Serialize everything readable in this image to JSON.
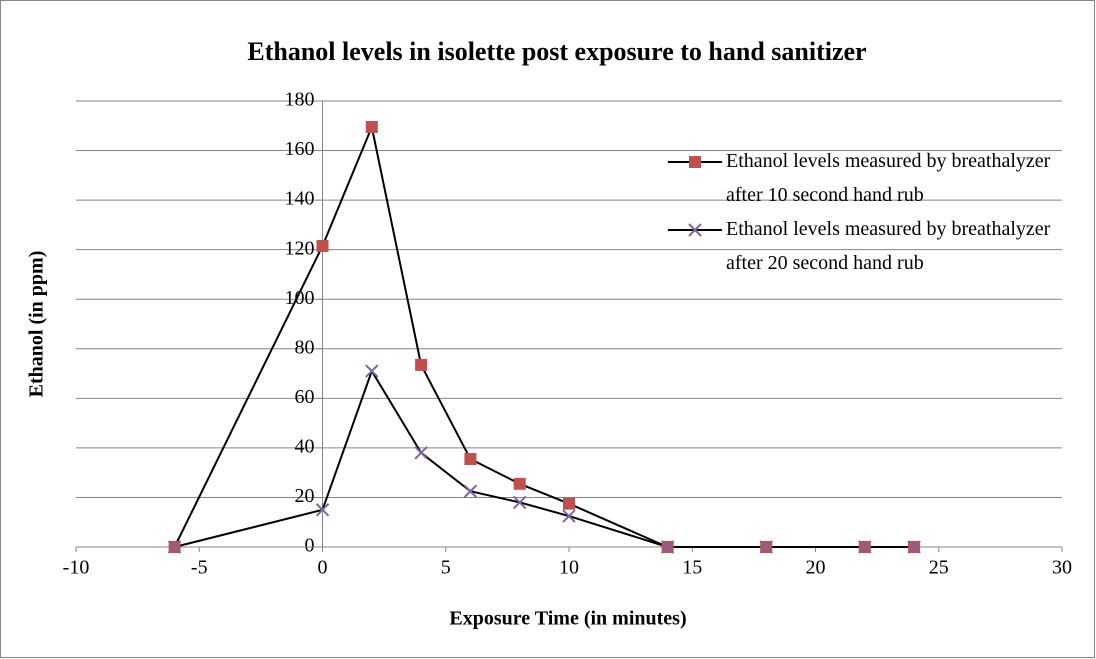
{
  "chart_data": {
    "type": "scatter",
    "title": "Ethanol levels in isolette post exposure to hand sanitizer",
    "x_label": "Exposure Time (in minutes)",
    "y_label": "Ethanol (in ppm)",
    "xlim": [
      -10,
      30
    ],
    "xticks": [
      -10,
      -5,
      0,
      5,
      10,
      15,
      20,
      25,
      30
    ],
    "ylim": [
      0,
      180
    ],
    "yticks": [
      0,
      20,
      40,
      60,
      80,
      100,
      120,
      140,
      160,
      180
    ],
    "grid": true,
    "legend": "right",
    "line_color": "#000000",
    "series": [
      {
        "name": "Ethanol levels measured by breathalyzer after 10 second hand rub",
        "color": "#c0504d",
        "marker": "square",
        "x": [
          -6,
          0,
          2,
          4,
          6,
          8,
          10,
          14,
          18,
          22,
          24
        ],
        "values": [
          0,
          121.5,
          169.5,
          73.5,
          35.5,
          25.5,
          17.5,
          0,
          0,
          0,
          0
        ]
      },
      {
        "name": "Ethanol levels measured by breathalyzer after 20 second hand rub",
        "color": "#8064a2",
        "marker": "x",
        "x": [
          -6,
          0,
          2,
          4,
          6,
          8,
          10,
          14,
          18,
          22,
          24
        ],
        "values": [
          0,
          15,
          71,
          38,
          22.5,
          18,
          12.5,
          0,
          0,
          0,
          0
        ]
      }
    ]
  }
}
